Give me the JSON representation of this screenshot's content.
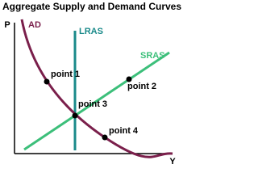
{
  "title": "Aggregate Supply and Demand Curves",
  "axes": {
    "y": "P",
    "x": "Y"
  },
  "curves": {
    "ad": "AD",
    "lras": "LRAS",
    "sras": "SRAS"
  },
  "points": [
    "point 1",
    "point 2",
    "point 3",
    "point 4"
  ]
}
